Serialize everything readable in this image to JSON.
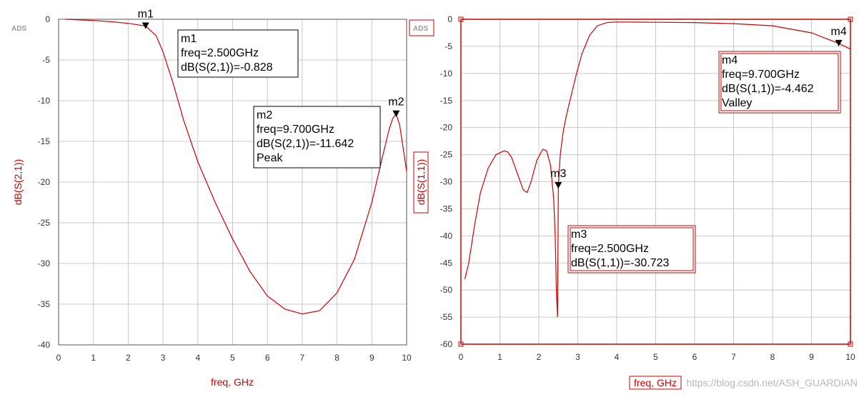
{
  "watermark": "https://blog.csdn.net/ASH_GUARDIAN",
  "colors": {
    "trace": "#cc0000",
    "axis_label": "#cc0000",
    "grid": "#c8c8c8"
  },
  "chart_data": [
    {
      "type": "line",
      "badge": "ADS",
      "xlabel": "freq, GHz",
      "ylabel": "dB(S(2,1))",
      "xlim": [
        0,
        10
      ],
      "ylim": [
        -40,
        0
      ],
      "xticks": [
        0,
        1,
        2,
        3,
        4,
        5,
        6,
        7,
        8,
        9,
        10
      ],
      "yticks": [
        0,
        -5,
        -10,
        -15,
        -20,
        -25,
        -30,
        -35,
        -40
      ],
      "grid": true,
      "series": [
        {
          "x": [
            0.2,
            0.5,
            1.0,
            1.5,
            2.0,
            2.5,
            2.8,
            3.0,
            3.3,
            3.6,
            4.0,
            4.5,
            5.0,
            5.5,
            6.0,
            6.5,
            7.0,
            7.5,
            8.0,
            8.5,
            9.0,
            9.3,
            9.5,
            9.6,
            9.7,
            9.8,
            9.9,
            10.0
          ],
          "y": [
            0,
            -0.05,
            -0.15,
            -0.3,
            -0.5,
            -0.828,
            -2.0,
            -4.0,
            -8.0,
            -12.5,
            -17.5,
            -22.5,
            -27.0,
            -31.0,
            -34.0,
            -35.6,
            -36.2,
            -35.8,
            -33.6,
            -29.5,
            -22.5,
            -17.0,
            -13.5,
            -12.2,
            -11.642,
            -13.0,
            -15.8,
            -18.7
          ]
        }
      ],
      "markers": [
        {
          "name": "m1",
          "x": 2.5,
          "y": -0.828,
          "lines": [
            "m1",
            "freq=2.500GHz",
            "dB(S(2,1))=-0.828"
          ]
        },
        {
          "name": "m2",
          "x": 9.7,
          "y": -11.642,
          "lines": [
            "m2",
            "freq=9.700GHz",
            "dB(S(2,1))=-11.642",
            "Peak"
          ]
        }
      ]
    },
    {
      "type": "line",
      "badge": "ADS",
      "xlabel": "freq, GHz",
      "ylabel": "dB(S(1,1))",
      "xlim": [
        0,
        10
      ],
      "ylim": [
        -60,
        0
      ],
      "xticks": [
        0,
        1,
        2,
        3,
        4,
        5,
        6,
        7,
        8,
        9,
        10
      ],
      "yticks": [
        0,
        -5,
        -10,
        -15,
        -20,
        -25,
        -30,
        -35,
        -40,
        -45,
        -50,
        -55,
        -60
      ],
      "grid": true,
      "series": [
        {
          "x": [
            0.1,
            0.2,
            0.35,
            0.5,
            0.7,
            0.9,
            1.1,
            1.2,
            1.3,
            1.45,
            1.6,
            1.7,
            1.8,
            1.95,
            2.1,
            2.2,
            2.3,
            2.38,
            2.42,
            2.45,
            2.48,
            2.5,
            2.55,
            2.62,
            2.7,
            2.8,
            2.95,
            3.1,
            3.3,
            3.5,
            3.75,
            4.0,
            5.0,
            6.0,
            7.0,
            8.0,
            9.0,
            9.7,
            10.0
          ],
          "y": [
            -48,
            -45,
            -38,
            -32,
            -27.5,
            -25.0,
            -24.3,
            -24.5,
            -25.5,
            -28.5,
            -31.5,
            -32.0,
            -30.0,
            -26.0,
            -24.0,
            -24.3,
            -27.0,
            -33.0,
            -40.0,
            -50.0,
            -55.0,
            -30.723,
            -25.0,
            -21.0,
            -18.0,
            -15.0,
            -10.5,
            -6.5,
            -3.0,
            -1.2,
            -0.6,
            -0.5,
            -0.55,
            -0.6,
            -0.8,
            -1.2,
            -2.5,
            -4.462,
            -5.5
          ]
        }
      ],
      "markers": [
        {
          "name": "m3",
          "x": 2.5,
          "y": -30.723,
          "lines": [
            "m3",
            "freq=2.500GHz",
            "dB(S(1,1))=-30.723"
          ]
        },
        {
          "name": "m4",
          "x": 9.7,
          "y": -4.462,
          "lines": [
            "m4",
            "freq=9.700GHz",
            "dB(S(1,1))=-4.462",
            "Valley"
          ]
        }
      ]
    }
  ]
}
